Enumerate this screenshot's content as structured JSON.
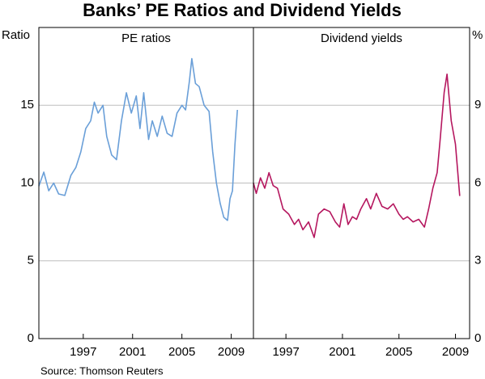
{
  "title": "Banks’ PE Ratios and Dividend Yields",
  "source": "Source: Thomson Reuters",
  "chart_data": [
    {
      "type": "line",
      "title": "PE ratios",
      "y_label": "Ratio",
      "y_axis_side": "left",
      "color": "#6a9fd8",
      "x": [
        1993.4,
        1993.8,
        1994.2,
        1994.6,
        1995,
        1995.5,
        1996,
        1996.4,
        1996.8,
        1997.2,
        1997.6,
        1997.9,
        1998.2,
        1998.6,
        1998.9,
        1999.3,
        1999.7,
        2000.1,
        2000.5,
        2000.9,
        2001.3,
        2001.6,
        2001.9,
        2002.3,
        2002.6,
        2003,
        2003.4,
        2003.8,
        2004.2,
        2004.6,
        2005,
        2005.3,
        2005.6,
        2005.8,
        2006.1,
        2006.4,
        2006.8,
        2007.2,
        2007.5,
        2007.8,
        2008.1,
        2008.4,
        2008.7,
        2008.9,
        2009.1,
        2009.3,
        2009.5
      ],
      "values": [
        9.8,
        10.7,
        9.5,
        10,
        9.3,
        9.2,
        10.5,
        11,
        12,
        13.5,
        14,
        15.2,
        14.5,
        15,
        13,
        11.8,
        11.5,
        14,
        15.8,
        14.5,
        15.6,
        13.5,
        15.8,
        12.8,
        14,
        13,
        14.3,
        13.2,
        13,
        14.5,
        15,
        14.7,
        16.5,
        18,
        16.4,
        16.2,
        15,
        14.6,
        12,
        10,
        8.7,
        7.8,
        7.6,
        9,
        9.5,
        12.5,
        14.7
      ],
      "xlim": [
        1993.4,
        2010.8
      ],
      "xticks": [
        1997,
        2001,
        2005,
        2009
      ],
      "ylim": [
        0,
        20
      ],
      "yticks": [
        0,
        5,
        10,
        15
      ],
      "grid": true
    },
    {
      "type": "line",
      "title": "Dividend yields",
      "y_label": "%",
      "y_axis_side": "right",
      "color": "#b5175f",
      "x": [
        1994.7,
        1994.9,
        1995.2,
        1995.5,
        1995.8,
        1996.1,
        1996.4,
        1996.8,
        1997.2,
        1997.6,
        1997.9,
        1998.2,
        1998.6,
        1999,
        1999.3,
        1999.7,
        2000.1,
        2000.5,
        2000.8,
        2001.1,
        2001.4,
        2001.7,
        2002,
        2002.3,
        2002.7,
        2003,
        2003.4,
        2003.8,
        2004.2,
        2004.6,
        2005,
        2005.3,
        2005.6,
        2006,
        2006.4,
        2006.8,
        2007.1,
        2007.4,
        2007.7,
        2007.9,
        2008.2,
        2008.4,
        2008.7,
        2009,
        2009.3
      ],
      "values": [
        6,
        5.6,
        6.2,
        5.8,
        6.4,
        5.9,
        5.8,
        5,
        4.8,
        4.4,
        4.6,
        4.2,
        4.5,
        3.9,
        4.8,
        5,
        4.9,
        4.5,
        4.3,
        5.2,
        4.4,
        4.7,
        4.6,
        5,
        5.4,
        5,
        5.6,
        5.1,
        5,
        5.2,
        4.8,
        4.6,
        4.7,
        4.5,
        4.6,
        4.3,
        5,
        5.8,
        6.4,
        7.6,
        9.5,
        10.2,
        8.4,
        7.5,
        5.5
      ],
      "xlim": [
        1994.7,
        2010.0
      ],
      "xticks": [
        1997,
        2001,
        2005,
        2009
      ],
      "ylim": [
        0,
        12
      ],
      "yticks": [
        0,
        3,
        6,
        9
      ],
      "grid": true
    }
  ]
}
